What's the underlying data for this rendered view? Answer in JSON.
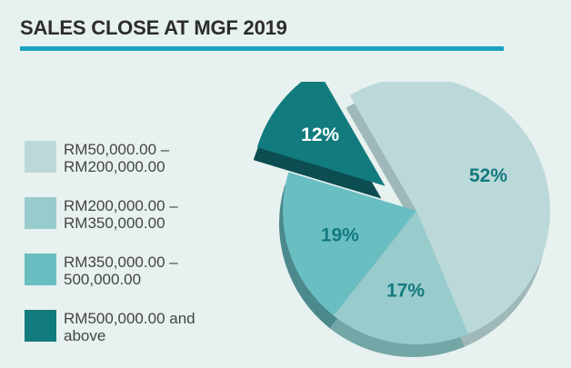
{
  "title": "SALES CLOSE AT MGF 2019",
  "colors": {
    "title_bar": "#1ba3c2",
    "background": "#e7f1ef"
  },
  "chart_data": {
    "type": "pie",
    "title": "SALES CLOSE AT MGF 2019",
    "exploded_slice": 3,
    "legend_position": "left",
    "slices": [
      {
        "label": "RM50,000.00 –\nRM200,000.00",
        "value": 52,
        "value_label": "52%",
        "color": "#bcd9d9",
        "side_color": "#9fb8b9",
        "label_color": "#137a7f"
      },
      {
        "label": "RM200,000.00 –\nRM350,000.00",
        "value": 17,
        "value_label": "17%",
        "color": "#98cbcc",
        "side_color": "#73a6a7",
        "label_color": "#137a7f"
      },
      {
        "label": "RM350,000.00 –\n500,000.00",
        "value": 19,
        "value_label": "19%",
        "color": "#69bec2",
        "side_color": "#4b898c",
        "label_color": "#137a7f"
      },
      {
        "label": "RM500,000.00 and\nabove",
        "value": 12,
        "value_label": "12%",
        "color": "#127b7e",
        "side_color": "#0b4d50",
        "label_color": "#ffffff"
      }
    ]
  }
}
